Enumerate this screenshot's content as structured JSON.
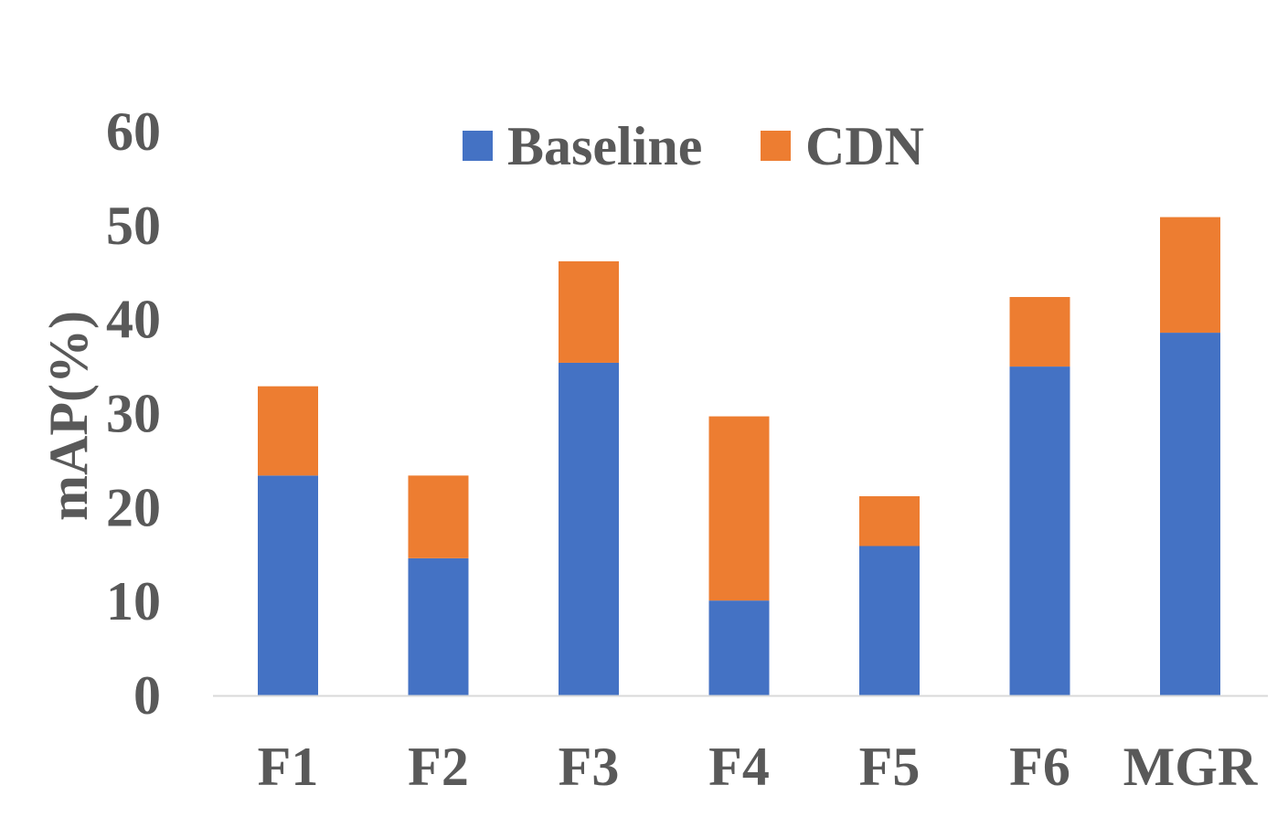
{
  "chart_data": {
    "type": "bar",
    "stacked": true,
    "categories": [
      "F1",
      "F2",
      "F3",
      "F4",
      "F5",
      "F6",
      "MGR"
    ],
    "series": [
      {
        "name": "Baseline",
        "color": "#4472C4",
        "values": [
          23.4,
          14.6,
          35.4,
          10.1,
          15.9,
          35.0,
          38.6
        ]
      },
      {
        "name": "CDN",
        "color": "#ED7D31",
        "values": [
          9.5,
          8.8,
          10.8,
          19.6,
          5.3,
          7.4,
          12.3
        ]
      }
    ],
    "ylabel": "mAP(%)",
    "ylim": [
      0,
      60
    ],
    "yticks": [
      "0",
      "10",
      "20",
      "30",
      "40",
      "50",
      "60"
    ],
    "grid": false,
    "legend": "top-center"
  }
}
